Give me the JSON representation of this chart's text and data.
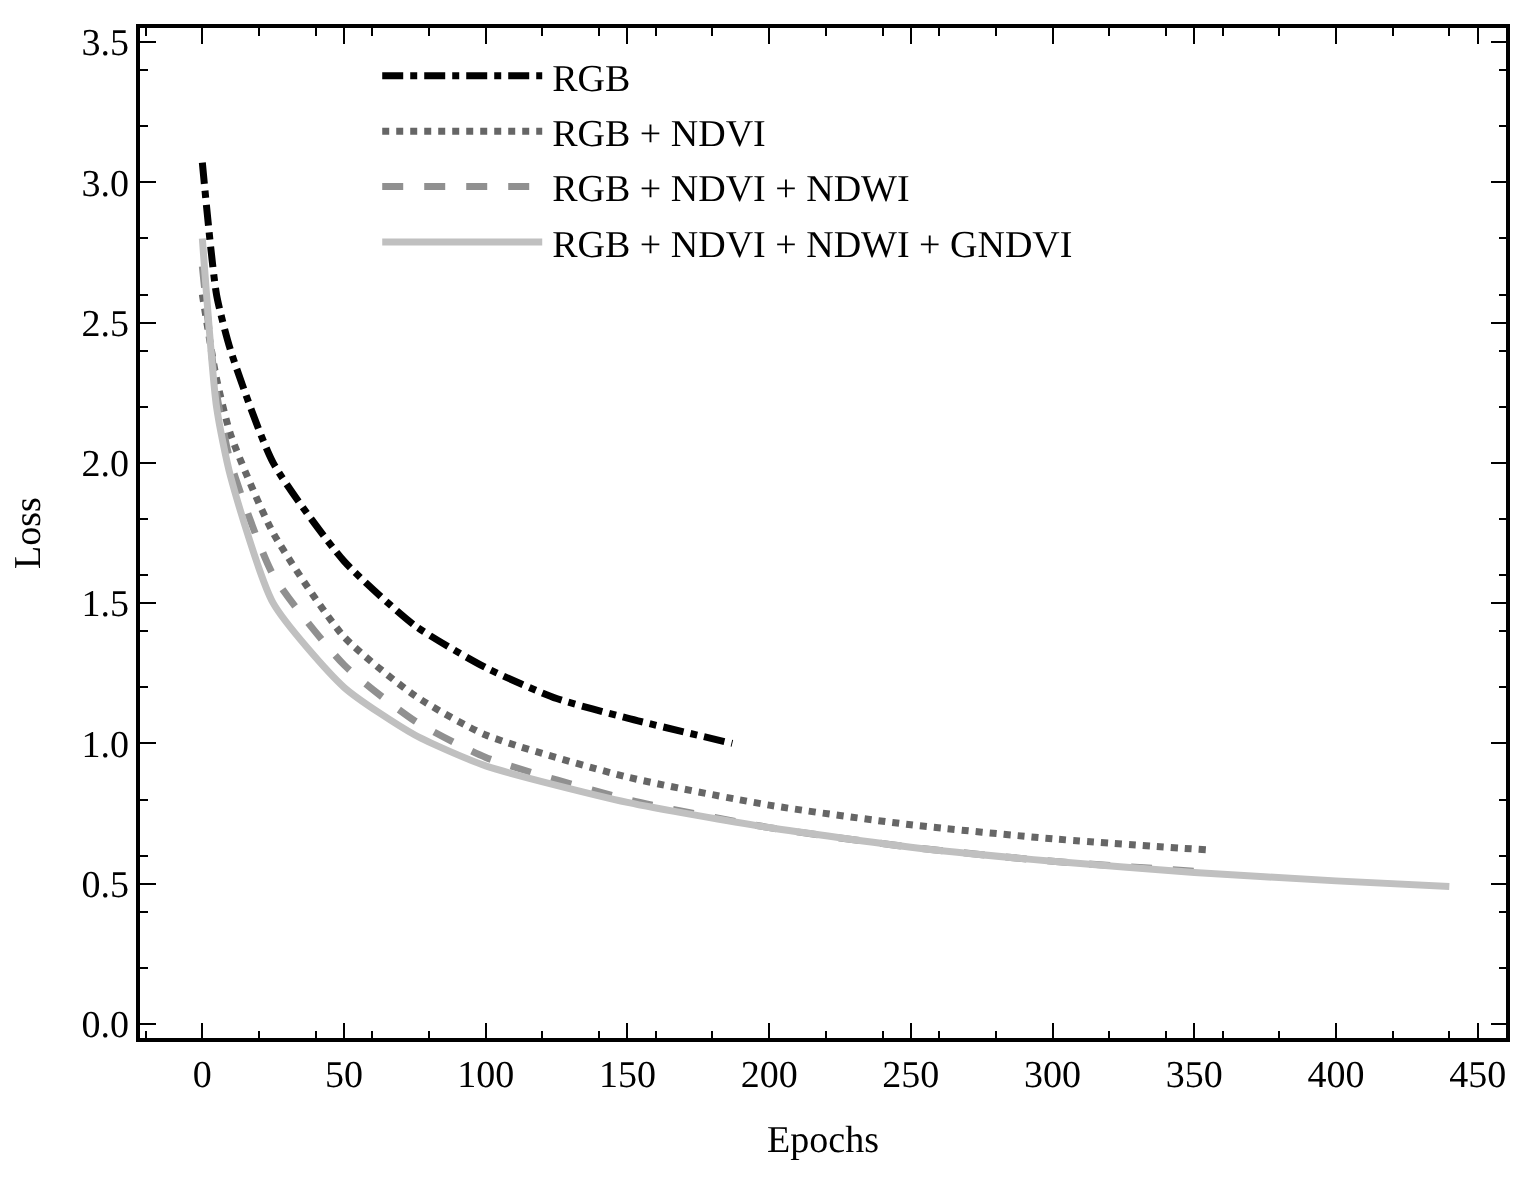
{
  "chart_data": {
    "type": "line",
    "xlabel": "Epochs",
    "ylabel": "Loss",
    "xlim": [
      -22,
      460
    ],
    "xticks": [
      0,
      50,
      100,
      150,
      200,
      250,
      300,
      350,
      400,
      450
    ],
    "ylim": [
      -0.05,
      3.55
    ],
    "yticks": [
      {
        "value": 0,
        "label": "0.0"
      },
      0.5,
      {
        "value": 1,
        "label": "1.0"
      },
      1.5,
      {
        "value": 2,
        "label": "2.0"
      },
      2.5,
      {
        "value": 3,
        "label": "3.0"
      },
      3.5
    ],
    "legend": "top",
    "marker": "none",
    "series": [
      {
        "name": "RGB",
        "color": "#000000",
        "line_style": "dashdot",
        "x": [
          0,
          5,
          10,
          25,
          50,
          75,
          100,
          125,
          150,
          187
        ],
        "values": [
          3.07,
          2.6,
          2.4,
          2.0,
          1.65,
          1.42,
          1.27,
          1.16,
          1.09,
          1.0
        ]
      },
      {
        "name": "RGB + NDVI",
        "color": "#666666",
        "line_style": "dotted",
        "x": [
          0,
          5,
          10,
          25,
          50,
          75,
          100,
          150,
          200,
          250,
          300,
          355
        ],
        "values": [
          2.6,
          2.3,
          2.1,
          1.75,
          1.38,
          1.17,
          1.03,
          0.88,
          0.78,
          0.71,
          0.66,
          0.62
        ]
      },
      {
        "name": "RGB + NDVI + NDWI",
        "color": "#909090",
        "line_style": "dashed",
        "x": [
          0,
          5,
          10,
          25,
          50,
          75,
          100,
          150,
          200,
          250,
          300,
          357
        ],
        "values": [
          2.7,
          2.25,
          2.0,
          1.6,
          1.28,
          1.08,
          0.95,
          0.8,
          0.7,
          0.63,
          0.58,
          0.54
        ]
      },
      {
        "name": "RGB + NDVI + NDWI + GNDVI",
        "color": "#c0c0c0",
        "line_style": "solid",
        "x": [
          0,
          5,
          10,
          25,
          50,
          75,
          100,
          150,
          200,
          250,
          300,
          350,
          400,
          440
        ],
        "values": [
          2.8,
          2.2,
          1.95,
          1.5,
          1.2,
          1.03,
          0.92,
          0.79,
          0.7,
          0.63,
          0.58,
          0.54,
          0.51,
          0.49
        ]
      }
    ]
  }
}
